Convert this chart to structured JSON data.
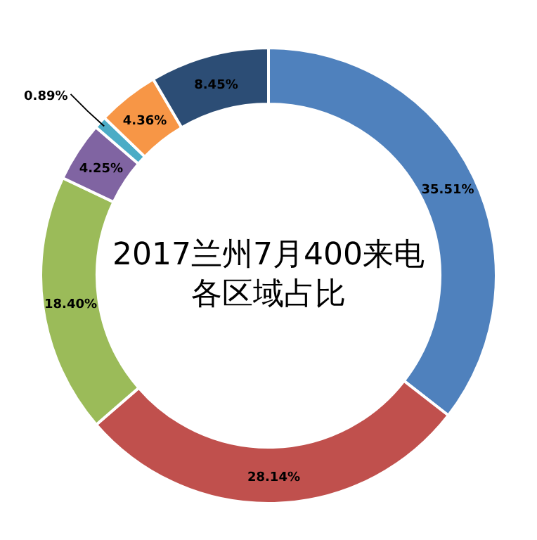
{
  "chart_data": {
    "type": "donut",
    "title": "2017兰州7月400来电各区域占比",
    "categories": [
      null,
      null,
      null,
      null,
      null,
      null,
      null
    ],
    "values": [
      35.51,
      28.14,
      18.4,
      4.25,
      0.89,
      4.36,
      8.45
    ],
    "value_labels": [
      "35.51%",
      "28.14%",
      "18.40%",
      "4.25%",
      "0.89%",
      "4.36%",
      "8.45%"
    ],
    "colors": [
      "#4f81bd",
      "#c0504d",
      "#9bbb59",
      "#8064a2",
      "#4bacc6",
      "#f79646",
      "#2c4d75"
    ]
  }
}
